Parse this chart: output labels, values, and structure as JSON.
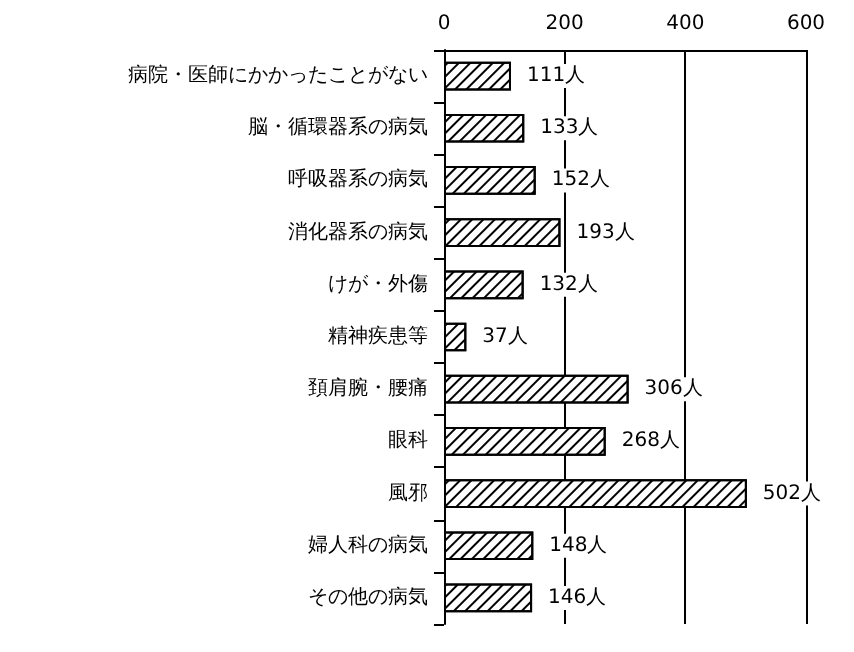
{
  "chart_data": {
    "type": "bar",
    "orientation": "horizontal",
    "categories": [
      "病院・医師にかかったことがない",
      "脳・循環器系の病気",
      "呼吸器系の病気",
      "消化器系の病気",
      "けが・外傷",
      "精神疾患等",
      "頚肩腕・腰痛",
      "眼科",
      "風邪",
      "婦人科の病気",
      "その他の病気"
    ],
    "series": [
      {
        "color": "#000000",
        "values": [
          111,
          133,
          152,
          193,
          132,
          37,
          306,
          268,
          502,
          148,
          146
        ],
        "value_labels": [
          "111人",
          "133人",
          "152人",
          "193人",
          "132人",
          "37人",
          "306人",
          "268人",
          "502人",
          "148人",
          "146人"
        ]
      }
    ],
    "xlim": [
      0,
      600
    ],
    "xticks": [
      0,
      200,
      400,
      600
    ],
    "grid": "x"
  }
}
